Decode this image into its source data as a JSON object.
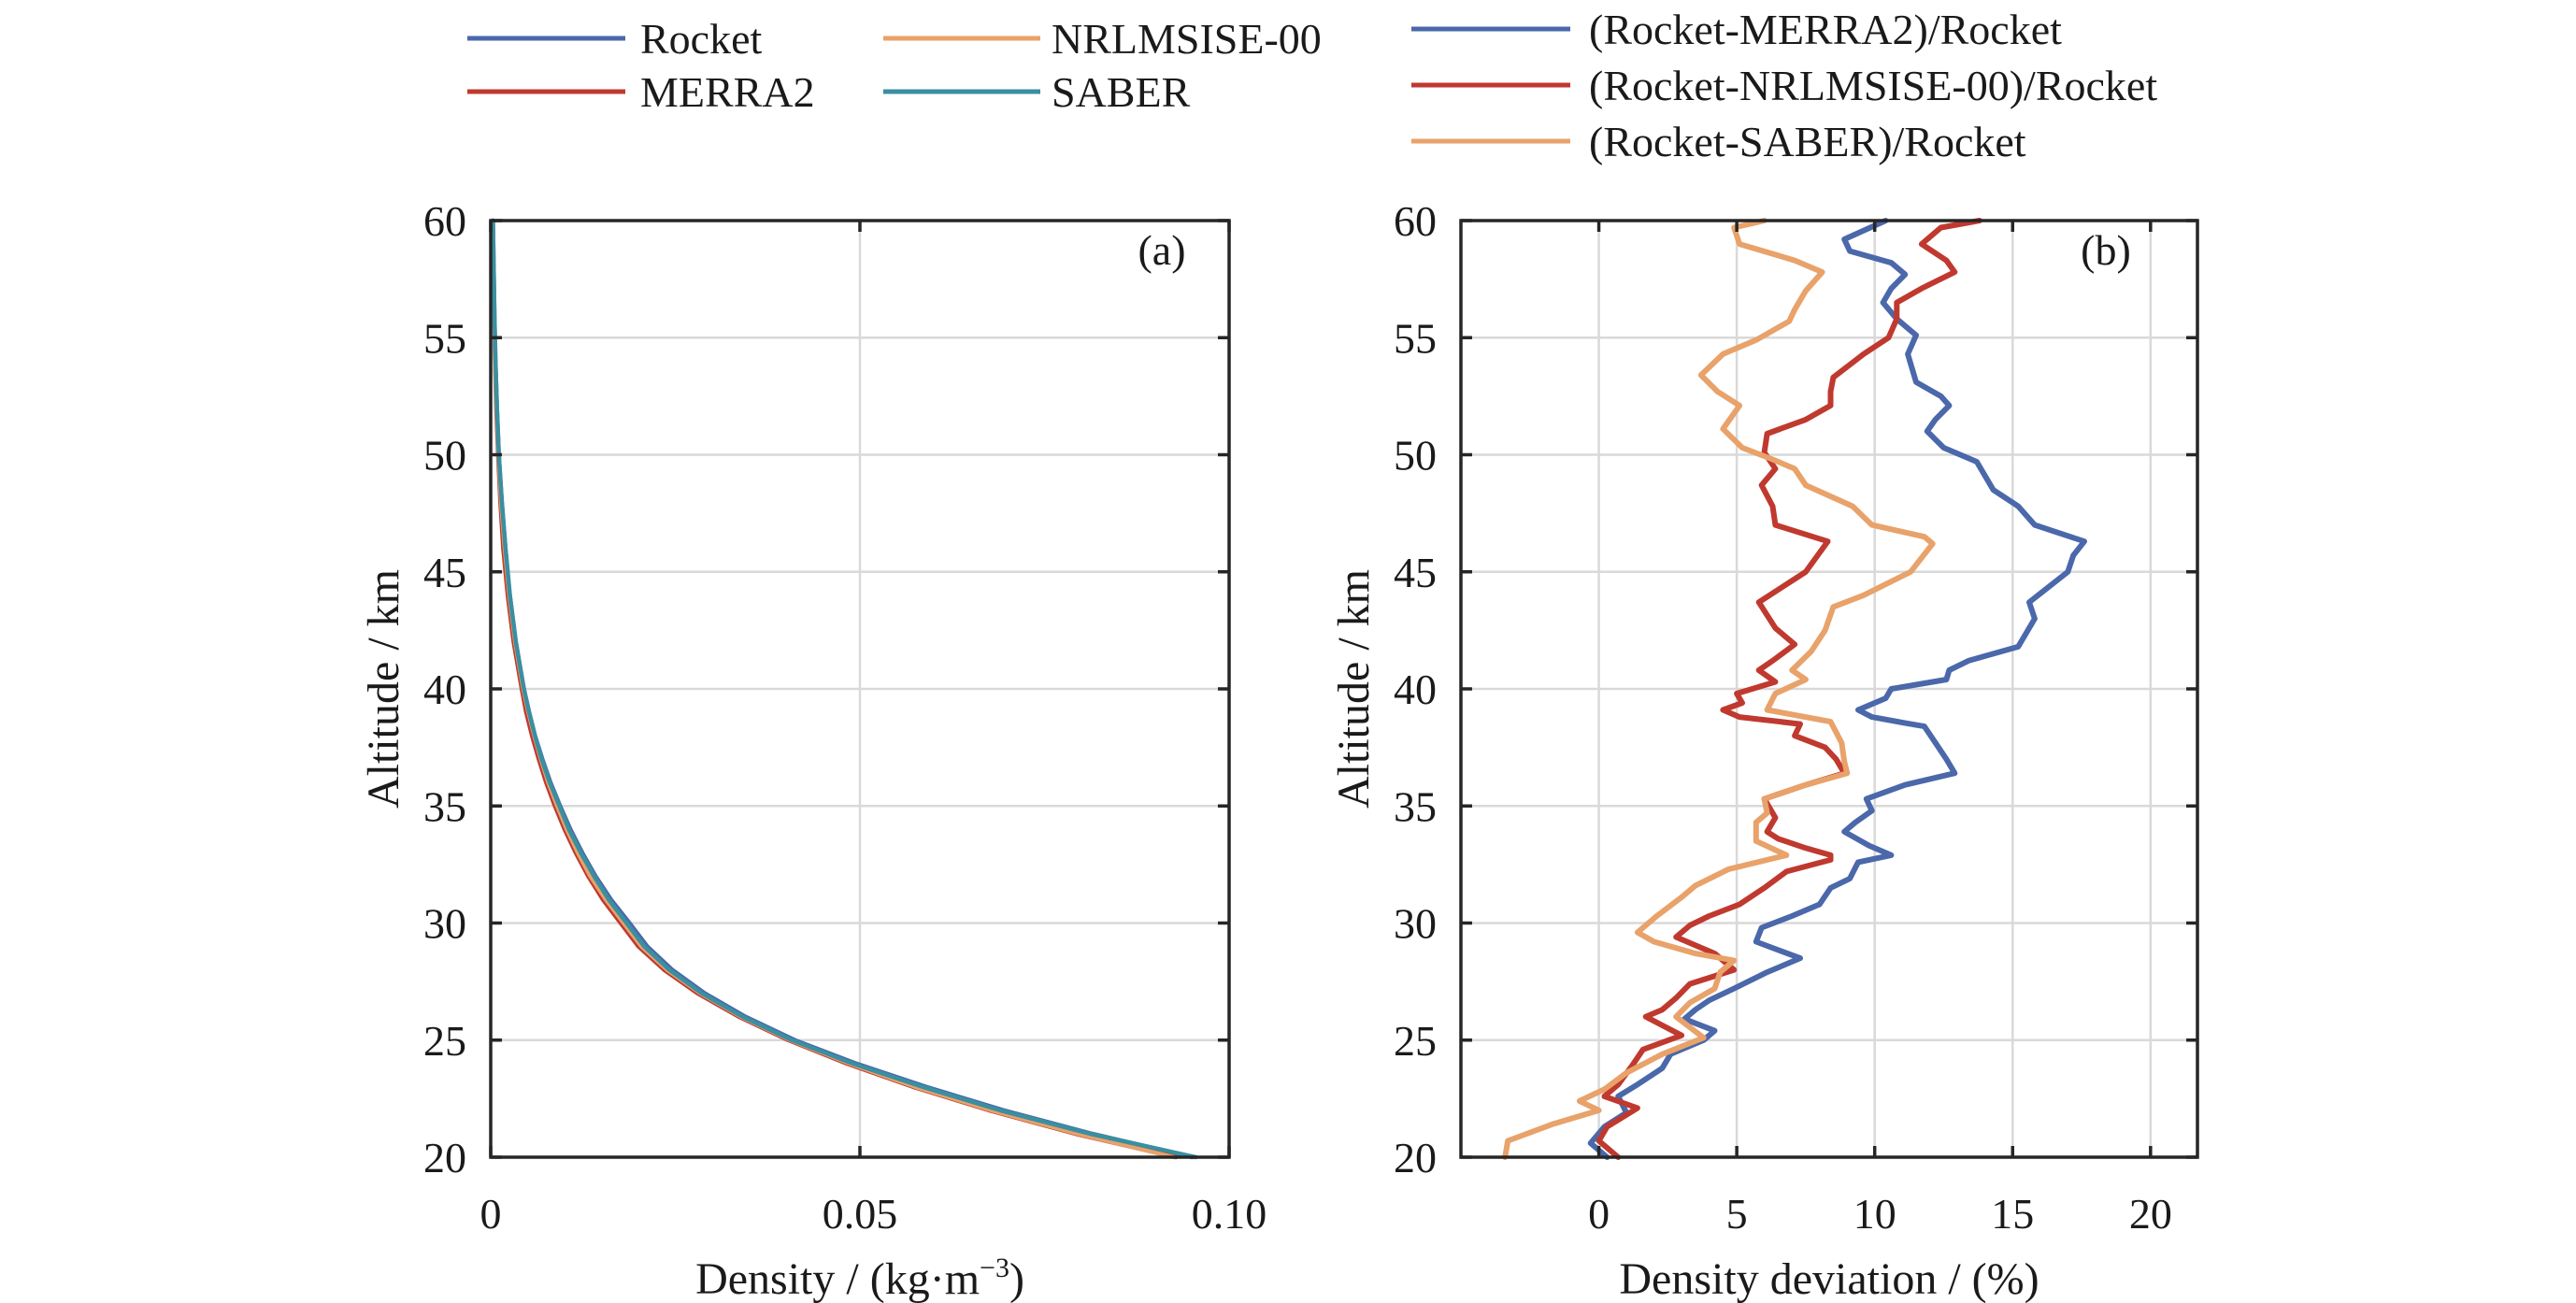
{
  "chart_data": [
    {
      "panel": "a",
      "type": "line",
      "panel_label": "(a)",
      "xlabel": "Density / (kg·m",
      "xlabel_sup": "−3",
      "xlabel_end": ")",
      "ylabel": "Altitude / km",
      "xlim": [
        0,
        0.1
      ],
      "ylim": [
        20,
        60
      ],
      "xticks": [
        0,
        0.05,
        0.1
      ],
      "xtick_labels": [
        "0",
        "0.05",
        "0.10"
      ],
      "yticks": [
        20,
        25,
        30,
        35,
        40,
        45,
        50,
        55,
        60
      ],
      "ytick_labels": [
        "20",
        "25",
        "30",
        "35",
        "40",
        "45",
        "50",
        "55",
        "60"
      ],
      "grid": true,
      "legend": {
        "placement": "top-left, above plot",
        "entries": [
          {
            "label": "Rocket",
            "color": "#4a68aa"
          },
          {
            "label": "MERRA2",
            "color": "#c0392f"
          },
          {
            "label": "NRLMSISE-00",
            "color": "#e8a26a"
          },
          {
            "label": "SABER",
            "color": "#3a8fa0"
          }
        ]
      },
      "altitude_km": [
        20,
        21,
        22,
        23,
        24,
        25,
        26,
        27,
        28,
        29,
        30,
        31,
        32,
        33,
        34,
        35,
        36,
        37,
        38,
        39,
        40,
        42,
        44,
        46,
        48,
        50,
        52,
        54,
        56,
        58,
        60
      ],
      "series": [
        {
          "name": "Rocket",
          "color": "#4a68aa",
          "values": [
            0.095,
            0.0815,
            0.0695,
            0.059,
            0.0495,
            0.0412,
            0.0345,
            0.029,
            0.0246,
            0.0212,
            0.0188,
            0.0163,
            0.0142,
            0.0124,
            0.0108,
            0.0094,
            0.0081,
            0.007,
            0.006,
            0.0052,
            0.0045,
            0.0034,
            0.0026,
            0.002,
            0.0015,
            0.0011,
            0.00085,
            0.00065,
            0.0005,
            0.0004,
            0.0003
          ]
        },
        {
          "name": "MERRA2",
          "color": "#c0392f",
          "values": [
            0.0928,
            0.0792,
            0.0675,
            0.0572,
            0.0482,
            0.0403,
            0.0336,
            0.028,
            0.0235,
            0.02,
            0.0176,
            0.0152,
            0.0132,
            0.0115,
            0.01,
            0.0087,
            0.0075,
            0.0065,
            0.0056,
            0.0048,
            0.0042,
            0.0031,
            0.0023,
            0.0017,
            0.0013,
            0.001,
            0.00075,
            0.00058,
            0.00045,
            0.00035,
            0.00028
          ]
        },
        {
          "name": "NRLMSISE-00",
          "color": "#e8a26a",
          "values": [
            0.0925,
            0.0795,
            0.0678,
            0.0575,
            0.0486,
            0.0406,
            0.0339,
            0.0284,
            0.0239,
            0.0204,
            0.018,
            0.0156,
            0.0135,
            0.0118,
            0.0103,
            0.009,
            0.0078,
            0.0068,
            0.0059,
            0.0051,
            0.0044,
            0.0033,
            0.0025,
            0.0019,
            0.0014,
            0.00105,
            0.0008,
            0.0006,
            0.00048,
            0.00038,
            0.0003
          ]
        },
        {
          "name": "SABER",
          "color": "#3a8fa0",
          "values": [
            0.0955,
            0.0812,
            0.069,
            0.0585,
            0.049,
            0.0408,
            0.0341,
            0.0286,
            0.0242,
            0.0208,
            0.0184,
            0.016,
            0.014,
            0.0122,
            0.0106,
            0.0093,
            0.008,
            0.0069,
            0.006,
            0.0052,
            0.0045,
            0.0034,
            0.0026,
            0.002,
            0.0015,
            0.0011,
            0.00085,
            0.00065,
            0.0005,
            0.0004,
            0.0003
          ]
        }
      ]
    },
    {
      "panel": "b",
      "type": "line",
      "panel_label": "(b)",
      "xlabel": "Density deviation / (%)",
      "ylabel": "Altitude / km",
      "xlim": [
        -5,
        21.7
      ],
      "ylim": [
        20,
        60
      ],
      "xticks": [
        0,
        5,
        10,
        15,
        20
      ],
      "xtick_labels": [
        "0",
        "5",
        "10",
        "15",
        "20"
      ],
      "yticks": [
        20,
        25,
        30,
        35,
        40,
        45,
        50,
        55,
        60
      ],
      "ytick_labels": [
        "20",
        "25",
        "30",
        "35",
        "40",
        "45",
        "50",
        "55",
        "60"
      ],
      "grid": true,
      "legend": {
        "placement": "top-right, above plot",
        "entries": [
          {
            "label": "(Rocket-MERRA2)/Rocket",
            "color": "#4a68aa"
          },
          {
            "label": "(Rocket-NRLMSISE-00)/Rocket",
            "color": "#c0392f"
          },
          {
            "label": "(Rocket-SABER)/Rocket",
            "color": "#e8a26a"
          }
        ]
      },
      "series": [
        {
          "name": "(Rocket-MERRA2)/Rocket",
          "color": "#4a68aa",
          "points": [
            [
              20.0,
              0.3
            ],
            [
              20.6,
              -0.3
            ],
            [
              21.3,
              0.2
            ],
            [
              21.9,
              1.0
            ],
            [
              22.6,
              0.7
            ],
            [
              23.1,
              1.4
            ],
            [
              23.8,
              2.3
            ],
            [
              24.4,
              2.6
            ],
            [
              25.0,
              3.8
            ],
            [
              25.4,
              4.2
            ],
            [
              25.9,
              3.1
            ],
            [
              26.3,
              3.5
            ],
            [
              26.7,
              4.0
            ],
            [
              27.2,
              4.9
            ],
            [
              27.9,
              6.1
            ],
            [
              28.5,
              7.3
            ],
            [
              29.2,
              5.7
            ],
            [
              29.8,
              5.9
            ],
            [
              30.3,
              7.0
            ],
            [
              30.8,
              8.0
            ],
            [
              31.5,
              8.4
            ],
            [
              31.9,
              9.1
            ],
            [
              32.6,
              9.4
            ],
            [
              32.9,
              10.6
            ],
            [
              33.3,
              9.8
            ],
            [
              33.9,
              8.9
            ],
            [
              34.3,
              9.3
            ],
            [
              34.8,
              9.9
            ],
            [
              35.3,
              9.7
            ],
            [
              35.9,
              11.1
            ],
            [
              36.4,
              12.9
            ],
            [
              37.0,
              12.6
            ],
            [
              37.7,
              12.2
            ],
            [
              38.4,
              11.8
            ],
            [
              38.5,
              11.3
            ],
            [
              38.8,
              9.9
            ],
            [
              39.1,
              9.4
            ],
            [
              39.6,
              10.4
            ],
            [
              40.0,
              10.6
            ],
            [
              40.4,
              12.6
            ],
            [
              40.8,
              12.7
            ],
            [
              41.2,
              13.4
            ],
            [
              41.8,
              15.2
            ],
            [
              43.0,
              15.8
            ],
            [
              43.7,
              15.6
            ],
            [
              45.0,
              17.0
            ],
            [
              45.7,
              17.2
            ],
            [
              46.3,
              17.6
            ],
            [
              47.0,
              15.8
            ],
            [
              47.8,
              15.2
            ],
            [
              48.5,
              14.3
            ],
            [
              49.1,
              14.0
            ],
            [
              49.7,
              13.7
            ],
            [
              50.3,
              12.5
            ],
            [
              51.0,
              11.9
            ],
            [
              51.5,
              12.2
            ],
            [
              52.1,
              12.7
            ],
            [
              52.5,
              12.4
            ],
            [
              53.1,
              11.5
            ],
            [
              54.3,
              11.2
            ],
            [
              55.1,
              11.5
            ],
            [
              55.8,
              10.8
            ],
            [
              56.5,
              10.3
            ],
            [
              57.1,
              10.6
            ],
            [
              57.7,
              11.1
            ],
            [
              58.2,
              10.6
            ],
            [
              58.7,
              9.1
            ],
            [
              59.2,
              8.9
            ],
            [
              60.0,
              10.4
            ]
          ]
        },
        {
          "name": "(Rocket-NRLMSISE-00)/Rocket",
          "color": "#c0392f",
          "points": [
            [
              20.0,
              0.7
            ],
            [
              20.7,
              0.0
            ],
            [
              21.3,
              0.3
            ],
            [
              22.1,
              1.4
            ],
            [
              22.6,
              0.2
            ],
            [
              23.1,
              0.7
            ],
            [
              23.9,
              1.2
            ],
            [
              24.6,
              1.6
            ],
            [
              25.2,
              3.0
            ],
            [
              26.0,
              1.7
            ],
            [
              26.3,
              2.3
            ],
            [
              26.8,
              2.8
            ],
            [
              27.4,
              3.3
            ],
            [
              28.0,
              4.9
            ],
            [
              28.7,
              4.2
            ],
            [
              29.4,
              2.8
            ],
            [
              29.9,
              3.3
            ],
            [
              30.3,
              4.0
            ],
            [
              30.8,
              5.1
            ],
            [
              31.5,
              6.0
            ],
            [
              32.2,
              6.8
            ],
            [
              32.7,
              8.4
            ],
            [
              32.9,
              8.4
            ],
            [
              33.2,
              7.5
            ],
            [
              33.6,
              6.5
            ],
            [
              33.9,
              6.1
            ],
            [
              34.5,
              6.4
            ],
            [
              35.3,
              6.0
            ],
            [
              35.9,
              7.5
            ],
            [
              36.4,
              8.9
            ],
            [
              37.0,
              8.6
            ],
            [
              37.5,
              8.2
            ],
            [
              38.0,
              7.1
            ],
            [
              38.5,
              7.3
            ],
            [
              38.8,
              5.1
            ],
            [
              39.1,
              4.5
            ],
            [
              39.4,
              5.2
            ],
            [
              39.8,
              5.0
            ],
            [
              40.3,
              6.4
            ],
            [
              40.8,
              5.8
            ],
            [
              41.2,
              6.3
            ],
            [
              41.9,
              7.1
            ],
            [
              42.6,
              6.4
            ],
            [
              43.7,
              5.8
            ],
            [
              45.0,
              7.5
            ],
            [
              46.3,
              8.3
            ],
            [
              47.0,
              6.4
            ],
            [
              47.8,
              6.3
            ],
            [
              48.7,
              5.9
            ],
            [
              49.4,
              6.4
            ],
            [
              50.1,
              6.0
            ],
            [
              50.9,
              6.1
            ],
            [
              51.5,
              7.5
            ],
            [
              52.1,
              8.4
            ],
            [
              52.7,
              8.4
            ],
            [
              53.3,
              8.5
            ],
            [
              54.3,
              9.6
            ],
            [
              55.0,
              10.5
            ],
            [
              55.8,
              10.8
            ],
            [
              56.5,
              10.8
            ],
            [
              57.1,
              11.7
            ],
            [
              57.8,
              12.9
            ],
            [
              58.3,
              12.6
            ],
            [
              59.0,
              11.7
            ],
            [
              59.7,
              12.4
            ],
            [
              60.0,
              13.8
            ]
          ]
        },
        {
          "name": "(Rocket-SABER)/Rocket",
          "color": "#e8a26a",
          "points": [
            [
              20.0,
              -3.4
            ],
            [
              20.7,
              -3.3
            ],
            [
              21.4,
              -1.7
            ],
            [
              22.0,
              0.0
            ],
            [
              22.4,
              -0.7
            ],
            [
              22.9,
              0.2
            ],
            [
              23.6,
              1.0
            ],
            [
              24.4,
              2.3
            ],
            [
              25.1,
              3.8
            ],
            [
              26.0,
              2.8
            ],
            [
              26.6,
              3.3
            ],
            [
              27.2,
              4.2
            ],
            [
              27.9,
              4.4
            ],
            [
              28.4,
              4.9
            ],
            [
              28.7,
              3.5
            ],
            [
              29.2,
              2.0
            ],
            [
              29.6,
              1.4
            ],
            [
              30.3,
              2.1
            ],
            [
              31.1,
              3.0
            ],
            [
              31.6,
              3.5
            ],
            [
              32.3,
              4.7
            ],
            [
              32.9,
              6.8
            ],
            [
              33.5,
              5.7
            ],
            [
              34.3,
              5.7
            ],
            [
              34.7,
              6.1
            ],
            [
              35.3,
              6.0
            ],
            [
              35.9,
              7.5
            ],
            [
              36.4,
              9.0
            ],
            [
              36.9,
              8.9
            ],
            [
              37.7,
              8.8
            ],
            [
              38.6,
              8.4
            ],
            [
              39.1,
              6.1
            ],
            [
              39.8,
              6.4
            ],
            [
              40.4,
              7.5
            ],
            [
              40.8,
              7.0
            ],
            [
              41.6,
              7.7
            ],
            [
              42.5,
              8.2
            ],
            [
              43.5,
              8.5
            ],
            [
              44.0,
              9.6
            ],
            [
              45.0,
              11.3
            ],
            [
              46.2,
              12.1
            ],
            [
              46.5,
              11.8
            ],
            [
              47.0,
              9.9
            ],
            [
              47.8,
              9.2
            ],
            [
              48.7,
              7.5
            ],
            [
              49.4,
              7.1
            ],
            [
              49.8,
              6.3
            ],
            [
              50.3,
              5.2
            ],
            [
              51.1,
              4.5
            ],
            [
              52.1,
              5.1
            ],
            [
              52.7,
              4.3
            ],
            [
              53.4,
              3.7
            ],
            [
              54.3,
              4.5
            ],
            [
              54.9,
              5.7
            ],
            [
              55.7,
              6.9
            ],
            [
              56.2,
              7.1
            ],
            [
              57.0,
              7.5
            ],
            [
              57.8,
              8.1
            ],
            [
              58.3,
              7.1
            ],
            [
              59.0,
              5.1
            ],
            [
              59.7,
              4.9
            ],
            [
              60.0,
              6.0
            ]
          ]
        }
      ]
    }
  ]
}
